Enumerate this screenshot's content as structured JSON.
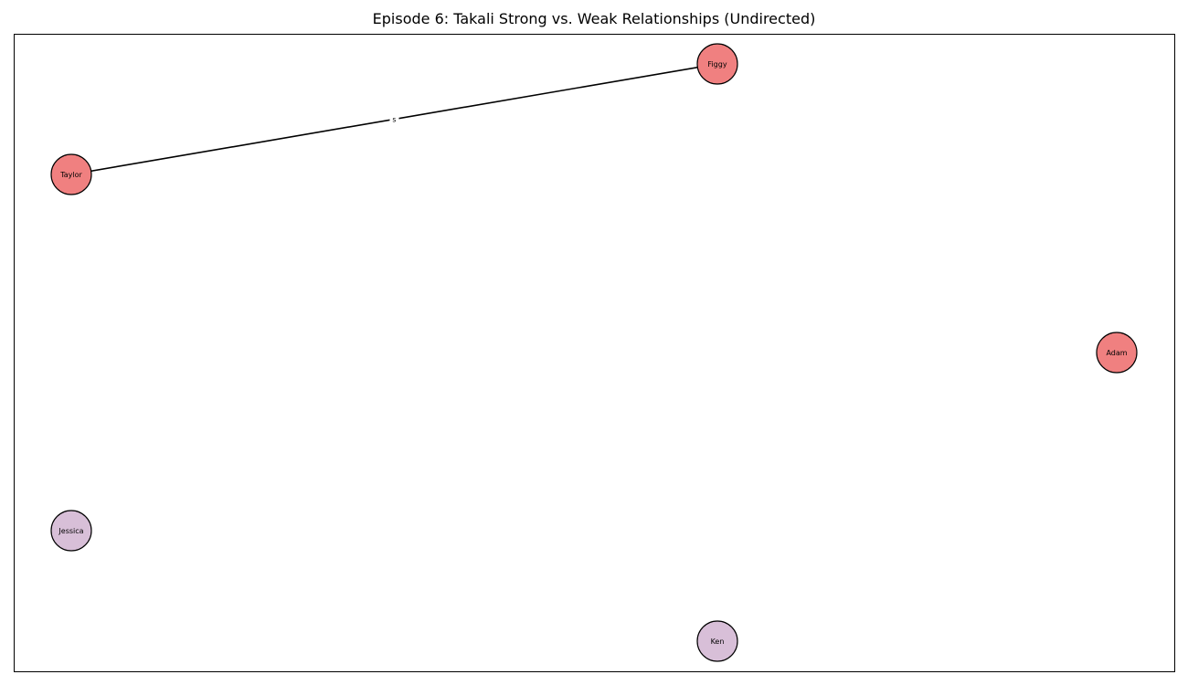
{
  "title": "Episode 6: Takali Strong vs. Weak Relationships (Undirected)",
  "colors": {
    "strong_node": "#f08080",
    "weak_node": "#d8bfd8",
    "edge": "#000000",
    "frame": "#000000"
  },
  "nodes": [
    {
      "id": "figgy",
      "label": "Figgy",
      "group": "strong"
    },
    {
      "id": "taylor",
      "label": "Taylor",
      "group": "strong"
    },
    {
      "id": "adam",
      "label": "Adam",
      "group": "strong"
    },
    {
      "id": "jessica",
      "label": "Jessica",
      "group": "weak"
    },
    {
      "id": "ken",
      "label": "Ken",
      "group": "weak"
    }
  ],
  "edges": [
    {
      "source": "taylor",
      "target": "figgy",
      "label": "s"
    }
  ]
}
